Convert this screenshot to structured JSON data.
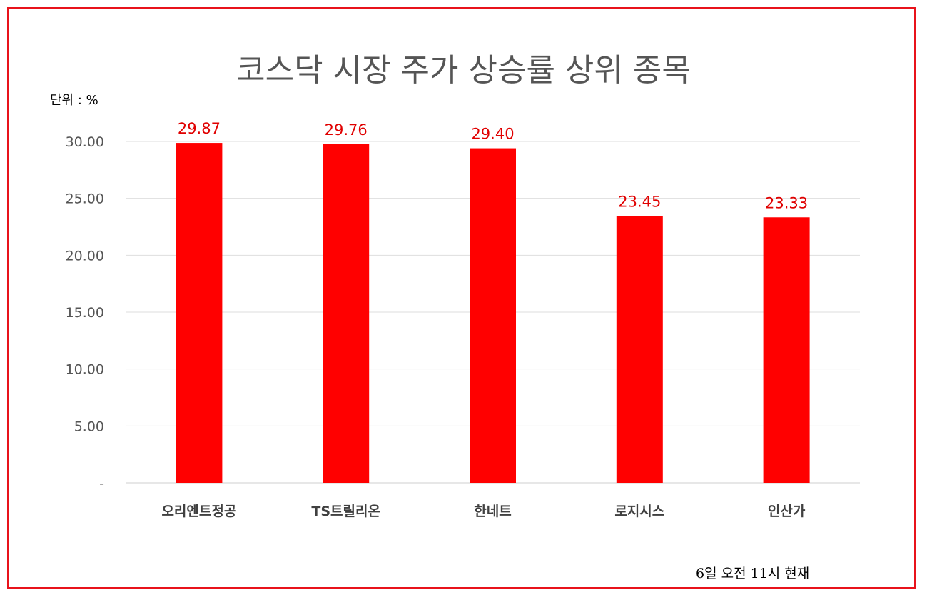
{
  "chart_data": {
    "type": "bar",
    "title": "코스닥 시장 주가 상승률 상위 종목",
    "unit_label": "단위 : %",
    "note": "6일  오전 11시 현재",
    "categories": [
      "오리엔트정공",
      "TS트릴리온",
      "한네트",
      "로지시스",
      "인산가"
    ],
    "values": [
      29.87,
      29.76,
      29.4,
      23.45,
      23.33
    ],
    "data_labels": [
      "29.87",
      "29.76",
      "29.40",
      "23.45",
      "23.33"
    ],
    "ylim": [
      0,
      30
    ],
    "yticks": [
      0,
      5,
      10,
      15,
      20,
      25,
      30
    ],
    "ytick_labels": [
      "-",
      "5.00",
      "10.00",
      "15.00",
      "20.00",
      "25.00",
      "30.00"
    ],
    "grid": true,
    "bar_color": "#ff0000",
    "label_color": "#e00000",
    "frame_color": "#e8131b"
  }
}
